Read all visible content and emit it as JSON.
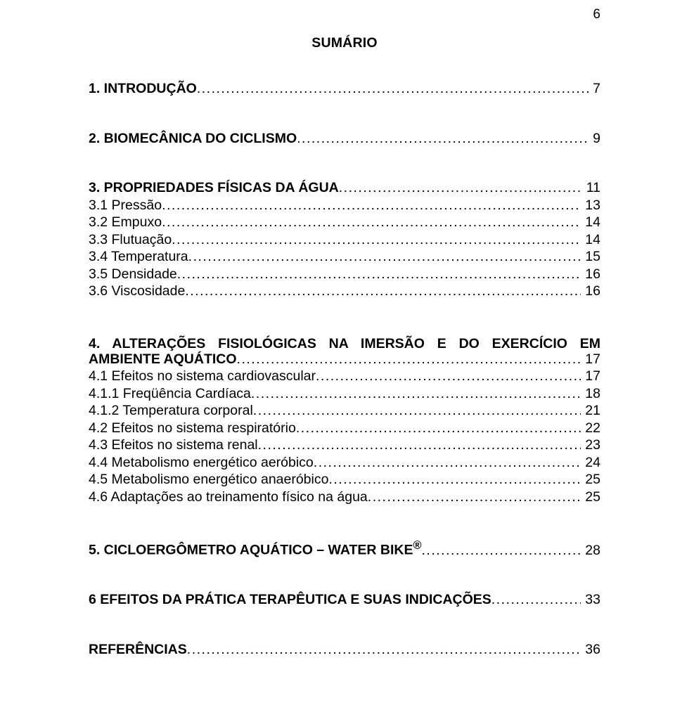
{
  "page_number": "6",
  "title": "SUMÁRIO",
  "colors": {
    "text": "#000000",
    "background": "#ffffff"
  },
  "typography": {
    "font_family": "Arial",
    "body_size_pt": 15,
    "title_size_pt": 15,
    "line_height": 1.0
  },
  "toc": {
    "sec1": {
      "label": "1. INTRODUÇÃO",
      "page": "7",
      "bold": true
    },
    "sec2": {
      "label": "2. BIOMECÂNICA DO CICLISMO",
      "page": "9",
      "bold": true
    },
    "sec3": {
      "label": "3. PROPRIEDADES FÍSICAS DA ÁGUA",
      "page": "11",
      "bold": true
    },
    "sec3_1": {
      "label": "3.1 Pressão",
      "page": "13",
      "bold": false
    },
    "sec3_2": {
      "label": "3.2 Empuxo",
      "page": "14",
      "bold": false
    },
    "sec3_3": {
      "label": "3.3 Flutuação",
      "page": "14",
      "bold": false
    },
    "sec3_4": {
      "label": "3.4 Temperatura",
      "page": "15",
      "bold": false
    },
    "sec3_5": {
      "label": "3.5 Densidade",
      "page": "16",
      "bold": false
    },
    "sec3_6": {
      "label": "3.6 Viscosidade",
      "page": "16",
      "bold": false
    },
    "sec4_line1": "4. ALTERAÇÕES FISIOLÓGICAS NA IMERSÃO E DO EXERCÍCIO EM",
    "sec4_line2": {
      "label": "AMBIENTE AQUÁTICO",
      "page": "17",
      "bold": true
    },
    "sec4_1": {
      "label": "4.1 Efeitos no sistema cardiovascular",
      "page": "17",
      "bold": false
    },
    "sec4_1_1": {
      "label": "4.1.1 Freqüência Cardíaca",
      "page": "18",
      "bold": false
    },
    "sec4_1_2": {
      "label": "4.1.2 Temperatura corporal",
      "page": "21",
      "bold": false
    },
    "sec4_2": {
      "label": "4.2 Efeitos no sistema respiratório",
      "page": "22",
      "bold": false
    },
    "sec4_3": {
      "label": "4.3 Efeitos no sistema renal",
      "page": "23",
      "bold": false
    },
    "sec4_4": {
      "label": "4.4 Metabolismo energético aeróbico",
      "page": "24",
      "bold": false
    },
    "sec4_5": {
      "label": "4.5 Metabolismo energético anaeróbico",
      "page": "25",
      "bold": false
    },
    "sec4_6": {
      "label": "4.6 Adaptações ao treinamento físico na água",
      "page": "25",
      "bold": false
    },
    "sec5": {
      "label": "5. CICLOERGÔMETRO AQUÁTICO – WATER BIKE",
      "sup": "®",
      "page": "28",
      "bold": true
    },
    "sec6": {
      "label": "6 EFEITOS DA PRÁTICA TERAPÊUTICA E SUAS INDICAÇÕES",
      "page": "33",
      "bold": true
    },
    "refs": {
      "label": "REFERÊNCIAS",
      "page": "36",
      "bold": true
    }
  }
}
